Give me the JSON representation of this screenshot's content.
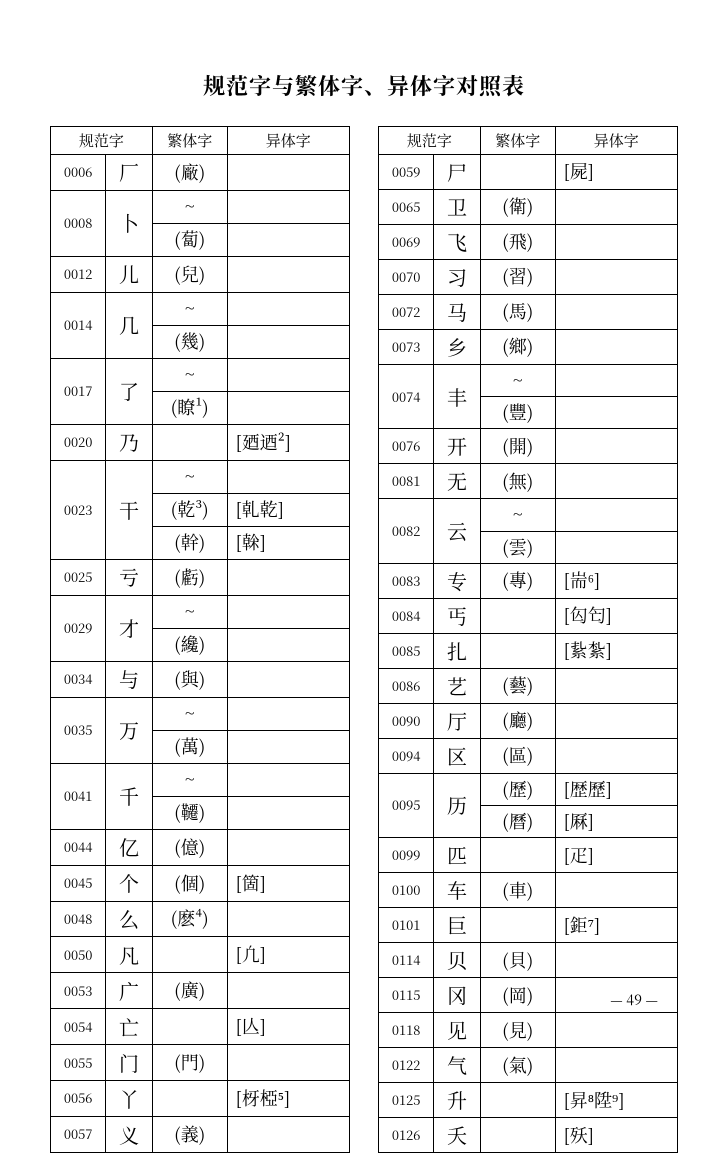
{
  "title": "规范字与繁体字、异体字对照表",
  "headers": {
    "code": "规范字",
    "simp": "",
    "trad": "繁体字",
    "var": "异体字"
  },
  "page_number": "— 49 —",
  "left_table": [
    {
      "code": "0006",
      "simp": "厂",
      "trad": "(廠)",
      "var": ""
    },
    {
      "code": "0008",
      "simp": "卜",
      "rows": [
        {
          "trad": "~",
          "var": ""
        },
        {
          "trad": "(蔔)",
          "var": ""
        }
      ]
    },
    {
      "code": "0012",
      "simp": "儿",
      "trad": "(兒)",
      "var": ""
    },
    {
      "code": "0014",
      "simp": "几",
      "rows": [
        {
          "trad": "~",
          "var": ""
        },
        {
          "trad": "(幾)",
          "var": ""
        }
      ]
    },
    {
      "code": "0017",
      "simp": "了",
      "rows": [
        {
          "trad": "~",
          "var": ""
        },
        {
          "trad": "(瞭¹)",
          "var": ""
        }
      ]
    },
    {
      "code": "0020",
      "simp": "乃",
      "trad": "",
      "var": "[廼迺²]"
    },
    {
      "code": "0023",
      "simp": "干",
      "rows": [
        {
          "trad": "~",
          "var": ""
        },
        {
          "trad": "(乾³)",
          "var": "[乹乾]"
        },
        {
          "trad": "(幹)",
          "var": "[榦]"
        }
      ]
    },
    {
      "code": "0025",
      "simp": "亏",
      "trad": "(虧)",
      "var": ""
    },
    {
      "code": "0029",
      "simp": "才",
      "rows": [
        {
          "trad": "~",
          "var": ""
        },
        {
          "trad": "(纔)",
          "var": ""
        }
      ]
    },
    {
      "code": "0034",
      "simp": "与",
      "trad": "(與)",
      "var": ""
    },
    {
      "code": "0035",
      "simp": "万",
      "rows": [
        {
          "trad": "~",
          "var": ""
        },
        {
          "trad": "(萬)",
          "var": ""
        }
      ]
    },
    {
      "code": "0041",
      "simp": "千",
      "rows": [
        {
          "trad": "~",
          "var": ""
        },
        {
          "trad": "(韆)",
          "var": ""
        }
      ]
    },
    {
      "code": "0044",
      "simp": "亿",
      "trad": "(億)",
      "var": ""
    },
    {
      "code": "0045",
      "simp": "个",
      "trad": "(個)",
      "var": "[箇]"
    },
    {
      "code": "0048",
      "simp": "么",
      "trad": "(麽⁴)",
      "var": ""
    },
    {
      "code": "0050",
      "simp": "凡",
      "trad": "",
      "var": "[凢]"
    },
    {
      "code": "0053",
      "simp": "广",
      "trad": "(廣)",
      "var": ""
    },
    {
      "code": "0054",
      "simp": "亡",
      "trad": "",
      "var": "[亾]"
    },
    {
      "code": "0055",
      "simp": "门",
      "trad": "(門)",
      "var": ""
    },
    {
      "code": "0056",
      "simp": "丫",
      "trad": "",
      "var": "[枒椏⁵]"
    },
    {
      "code": "0057",
      "simp": "义",
      "trad": "(義)",
      "var": ""
    }
  ],
  "right_table": [
    {
      "code": "0059",
      "simp": "尸",
      "trad": "",
      "var": "[屍]"
    },
    {
      "code": "0065",
      "simp": "卫",
      "trad": "(衛)",
      "var": ""
    },
    {
      "code": "0069",
      "simp": "飞",
      "trad": "(飛)",
      "var": ""
    },
    {
      "code": "0070",
      "simp": "习",
      "trad": "(習)",
      "var": ""
    },
    {
      "code": "0072",
      "simp": "马",
      "trad": "(馬)",
      "var": ""
    },
    {
      "code": "0073",
      "simp": "乡",
      "trad": "(鄉)",
      "var": ""
    },
    {
      "code": "0074",
      "simp": "丰",
      "rows": [
        {
          "trad": "~",
          "var": ""
        },
        {
          "trad": "(豐)",
          "var": ""
        }
      ]
    },
    {
      "code": "0076",
      "simp": "开",
      "trad": "(開)",
      "var": ""
    },
    {
      "code": "0081",
      "simp": "无",
      "trad": "(無)",
      "var": ""
    },
    {
      "code": "0082",
      "simp": "云",
      "rows": [
        {
          "trad": "~",
          "var": ""
        },
        {
          "trad": "(雲)",
          "var": ""
        }
      ]
    },
    {
      "code": "0083",
      "simp": "专",
      "trad": "(專)",
      "var": "[耑⁶]"
    },
    {
      "code": "0084",
      "simp": "丐",
      "trad": "",
      "var": "[匃匄]"
    },
    {
      "code": "0085",
      "simp": "扎",
      "trad": "",
      "var": "[紥紮]"
    },
    {
      "code": "0086",
      "simp": "艺",
      "trad": "(藝)",
      "var": ""
    },
    {
      "code": "0090",
      "simp": "厅",
      "trad": "(廳)",
      "var": ""
    },
    {
      "code": "0094",
      "simp": "区",
      "trad": "(區)",
      "var": ""
    },
    {
      "code": "0095",
      "simp": "历",
      "rows": [
        {
          "trad": "(歷)",
          "var": "[歴歷]"
        },
        {
          "trad": "(曆)",
          "var": "[厤]"
        }
      ]
    },
    {
      "code": "0099",
      "simp": "匹",
      "trad": "",
      "var": "[疋]"
    },
    {
      "code": "0100",
      "simp": "车",
      "trad": "(車)",
      "var": ""
    },
    {
      "code": "0101",
      "simp": "巨",
      "trad": "",
      "var": "[鉅⁷]"
    },
    {
      "code": "0114",
      "simp": "贝",
      "trad": "(貝)",
      "var": ""
    },
    {
      "code": "0115",
      "simp": "冈",
      "trad": "(岡)",
      "var": ""
    },
    {
      "code": "0118",
      "simp": "见",
      "trad": "(見)",
      "var": ""
    },
    {
      "code": "0122",
      "simp": "气",
      "trad": "(氣)",
      "var": ""
    },
    {
      "code": "0125",
      "simp": "升",
      "trad": "",
      "var": "[昇⁸陞⁹]"
    },
    {
      "code": "0126",
      "simp": "夭",
      "trad": "",
      "var": "[殀]"
    }
  ]
}
